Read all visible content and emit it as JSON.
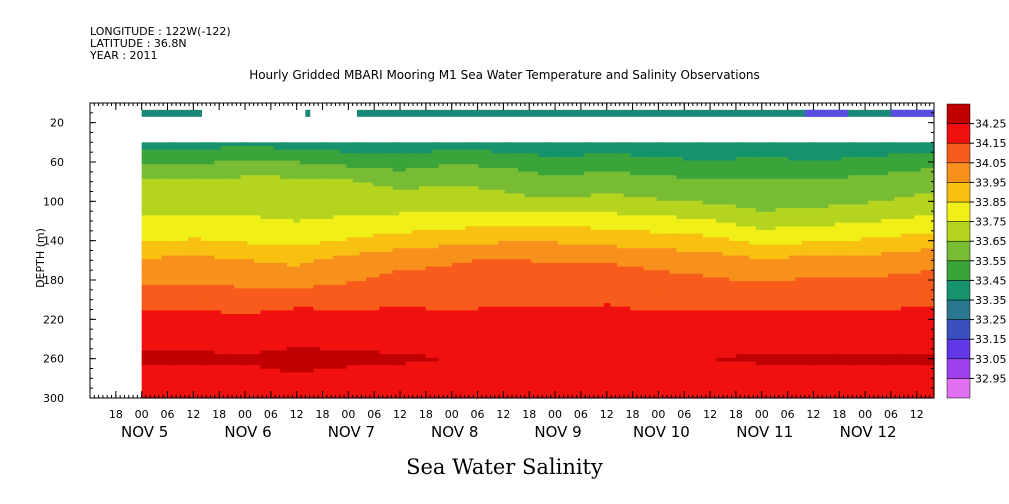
{
  "header": {
    "longitude": "LONGITUDE : 122W(-122)",
    "latitude": "LATITUDE : 36.8N",
    "year": "YEAR : 2011"
  },
  "title": "Hourly Gridded MBARI Mooring M1 Sea Water Temperature and Salinity Observations",
  "variable_name": "Sea Water Salinity",
  "colors": {
    "no_data": "#ffffff",
    "surface_mask_bar": "#1a8a78",
    "low_salinity_patch": "#5a4de0"
  },
  "chart_data": {
    "type": "heatmap",
    "title": "Hourly Gridded MBARI Mooring M1 Sea Water Temperature and Salinity Observations",
    "ylabel": "DEPTH (m)",
    "xlabel": "",
    "ylim": [
      300,
      0
    ],
    "y_ticks": [
      20,
      60,
      100,
      140,
      180,
      220,
      260,
      300
    ],
    "y_tick_labels": [
      "20",
      "60",
      "100",
      "140",
      "180",
      "220",
      "260",
      "300"
    ],
    "x_range": [
      "2011-11-04 12:00",
      "2011-11-12 16:00"
    ],
    "x_hour_ticks": [
      {
        "t": "2011-11-04 18:00",
        "label": "18"
      },
      {
        "t": "2011-11-05 00:00",
        "label": "00"
      },
      {
        "t": "2011-11-05 06:00",
        "label": "06"
      },
      {
        "t": "2011-11-05 12:00",
        "label": "12"
      },
      {
        "t": "2011-11-05 18:00",
        "label": "18"
      },
      {
        "t": "2011-11-06 00:00",
        "label": "00"
      },
      {
        "t": "2011-11-06 06:00",
        "label": "06"
      },
      {
        "t": "2011-11-06 12:00",
        "label": "12"
      },
      {
        "t": "2011-11-06 18:00",
        "label": "18"
      },
      {
        "t": "2011-11-07 00:00",
        "label": "00"
      },
      {
        "t": "2011-11-07 06:00",
        "label": "06"
      },
      {
        "t": "2011-11-07 12:00",
        "label": "12"
      },
      {
        "t": "2011-11-07 18:00",
        "label": "18"
      },
      {
        "t": "2011-11-08 00:00",
        "label": "00"
      },
      {
        "t": "2011-11-08 06:00",
        "label": "06"
      },
      {
        "t": "2011-11-08 12:00",
        "label": "12"
      },
      {
        "t": "2011-11-08 18:00",
        "label": "18"
      },
      {
        "t": "2011-11-09 00:00",
        "label": "00"
      },
      {
        "t": "2011-11-09 06:00",
        "label": "06"
      },
      {
        "t": "2011-11-09 12:00",
        "label": "12"
      },
      {
        "t": "2011-11-09 18:00",
        "label": "18"
      },
      {
        "t": "2011-11-10 00:00",
        "label": "00"
      },
      {
        "t": "2011-11-10 06:00",
        "label": "06"
      },
      {
        "t": "2011-11-10 12:00",
        "label": "12"
      },
      {
        "t": "2011-11-10 18:00",
        "label": "18"
      },
      {
        "t": "2011-11-11 00:00",
        "label": "00"
      },
      {
        "t": "2011-11-11 06:00",
        "label": "06"
      },
      {
        "t": "2011-11-11 12:00",
        "label": "12"
      },
      {
        "t": "2011-11-11 18:00",
        "label": "18"
      },
      {
        "t": "2011-11-12 00:00",
        "label": "00"
      },
      {
        "t": "2011-11-12 06:00",
        "label": "06"
      },
      {
        "t": "2011-11-12 12:00",
        "label": "12"
      }
    ],
    "x_day_labels": [
      {
        "t": "2011-11-05 00:00",
        "label": "NOV 5"
      },
      {
        "t": "2011-11-06 00:00",
        "label": "NOV 6"
      },
      {
        "t": "2011-11-07 00:00",
        "label": "NOV 7"
      },
      {
        "t": "2011-11-08 00:00",
        "label": "NOV 8"
      },
      {
        "t": "2011-11-09 00:00",
        "label": "NOV 9"
      },
      {
        "t": "2011-11-10 00:00",
        "label": "NOV 10"
      },
      {
        "t": "2011-11-11 00:00",
        "label": "NOV 11"
      },
      {
        "t": "2011-11-12 00:00",
        "label": "NOV 12"
      }
    ],
    "data_time_range": [
      "2011-11-05 00:00",
      "2011-11-12 16:00"
    ],
    "surface_bar_depth": 10,
    "surface_bar_segments": [
      [
        "2011-11-05 00:00",
        "2011-11-05 14:00"
      ],
      [
        "2011-11-06 14:00",
        "2011-11-06 15:00"
      ],
      [
        "2011-11-07 02:00",
        "2011-11-12 16:00"
      ]
    ],
    "profile_top_depth": 40,
    "depth_levels": [
      40,
      60,
      80,
      100,
      120,
      140,
      160,
      180,
      200,
      220,
      240,
      260,
      280,
      300
    ],
    "salinity_profiles": [
      {
        "t": "2011-11-05 00:00",
        "s": [
          33.4,
          33.52,
          33.66,
          33.72,
          33.76,
          33.84,
          33.96,
          34.02,
          34.12,
          34.18,
          34.22,
          34.27,
          34.22,
          34.2
        ]
      },
      {
        "t": "2011-11-05 12:00",
        "s": [
          33.4,
          33.54,
          33.67,
          33.72,
          33.76,
          33.86,
          33.98,
          34.03,
          34.12,
          34.18,
          34.22,
          34.27,
          34.22,
          34.2
        ]
      },
      {
        "t": "2011-11-06 00:00",
        "s": [
          33.42,
          33.56,
          33.68,
          33.72,
          33.76,
          33.84,
          33.95,
          34.02,
          34.1,
          34.17,
          34.21,
          34.26,
          34.22,
          34.2
        ]
      },
      {
        "t": "2011-11-06 12:00",
        "s": [
          33.4,
          33.55,
          33.68,
          33.72,
          33.75,
          33.82,
          33.93,
          34.0,
          34.12,
          34.19,
          34.23,
          34.28,
          34.24,
          34.21
        ]
      },
      {
        "t": "2011-11-07 00:00",
        "s": [
          33.38,
          33.52,
          33.66,
          33.72,
          33.76,
          33.86,
          33.98,
          34.04,
          34.12,
          34.18,
          34.22,
          34.27,
          34.22,
          34.2
        ]
      },
      {
        "t": "2011-11-07 12:00",
        "s": [
          33.36,
          33.5,
          33.62,
          33.7,
          33.78,
          33.9,
          34.02,
          34.08,
          34.13,
          34.18,
          34.22,
          34.26,
          34.22,
          34.2
        ]
      },
      {
        "t": "2011-11-08 00:00",
        "s": [
          33.4,
          33.54,
          33.64,
          33.7,
          33.8,
          33.92,
          34.04,
          34.08,
          34.12,
          34.18,
          34.21,
          34.25,
          34.21,
          34.2
        ]
      },
      {
        "t": "2011-11-08 12:00",
        "s": [
          33.38,
          33.52,
          33.62,
          33.68,
          33.82,
          33.94,
          34.06,
          34.1,
          34.13,
          34.18,
          34.21,
          34.24,
          34.21,
          34.2
        ]
      },
      {
        "t": "2011-11-09 00:00",
        "s": [
          33.36,
          33.48,
          33.58,
          33.66,
          33.82,
          33.94,
          34.04,
          34.09,
          34.13,
          34.18,
          34.21,
          34.23,
          34.21,
          34.2
        ]
      },
      {
        "t": "2011-11-09 12:00",
        "s": [
          33.38,
          33.5,
          33.6,
          33.68,
          33.8,
          33.92,
          34.04,
          34.1,
          34.14,
          34.18,
          34.21,
          34.24,
          34.21,
          34.2
        ]
      },
      {
        "t": "2011-11-10 00:00",
        "s": [
          33.36,
          33.48,
          33.58,
          33.66,
          33.78,
          33.9,
          34.02,
          34.08,
          34.12,
          34.17,
          34.21,
          34.24,
          34.21,
          34.2
        ]
      },
      {
        "t": "2011-11-10 12:00",
        "s": [
          33.34,
          33.46,
          33.56,
          33.64,
          33.76,
          33.88,
          34.0,
          34.06,
          34.12,
          34.18,
          34.22,
          34.25,
          34.22,
          34.2
        ]
      },
      {
        "t": "2011-11-11 00:00",
        "s": [
          33.36,
          33.48,
          33.56,
          33.6,
          33.7,
          33.82,
          33.96,
          34.04,
          34.12,
          34.18,
          34.22,
          34.26,
          34.22,
          34.2
        ]
      },
      {
        "t": "2011-11-11 12:00",
        "s": [
          33.34,
          33.46,
          33.56,
          33.62,
          33.72,
          33.84,
          33.98,
          34.06,
          34.12,
          34.18,
          34.22,
          34.26,
          34.22,
          34.2
        ]
      },
      {
        "t": "2011-11-12 00:00",
        "s": [
          33.36,
          33.48,
          33.58,
          33.64,
          33.74,
          33.86,
          33.98,
          34.06,
          34.12,
          34.18,
          34.22,
          34.26,
          34.22,
          34.2
        ]
      },
      {
        "t": "2011-11-12 16:00",
        "s": [
          33.38,
          33.52,
          33.62,
          33.68,
          33.78,
          33.9,
          34.02,
          34.08,
          34.13,
          34.18,
          34.22,
          34.26,
          34.22,
          34.2
        ]
      }
    ],
    "colorbar": {
      "levels": [
        "32.95",
        "33.05",
        "33.15",
        "33.25",
        "33.35",
        "33.45",
        "33.55",
        "33.65",
        "33.75",
        "33.85",
        "33.95",
        "34.05",
        "34.15",
        "34.25"
      ],
      "colors": [
        "#e070f0",
        "#a040f0",
        "#6038e8",
        "#3a4fc0",
        "#2a7890",
        "#16936e",
        "#3aa43a",
        "#78bc34",
        "#b4d420",
        "#f0f018",
        "#f8c010",
        "#f8901c",
        "#f85c1c",
        "#f01010",
        "#c00000"
      ]
    }
  }
}
